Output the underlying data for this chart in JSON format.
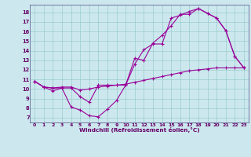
{
  "bg_color": "#cce8ee",
  "line_color": "#990099",
  "grid_color": "#99cccc",
  "spine_color": "#666699",
  "tick_color": "#660066",
  "xlabel": "Windchill (Refroidissement éolien,°C)",
  "xlim": [
    -0.5,
    23.5
  ],
  "ylim": [
    6.5,
    18.8
  ],
  "xticks": [
    0,
    1,
    2,
    3,
    4,
    5,
    6,
    7,
    8,
    9,
    10,
    11,
    12,
    13,
    14,
    15,
    16,
    17,
    18,
    19,
    20,
    21,
    22,
    23
  ],
  "yticks": [
    7,
    8,
    9,
    10,
    11,
    12,
    13,
    14,
    15,
    16,
    17,
    18
  ],
  "line1_x": [
    0,
    1,
    2,
    3,
    4,
    5,
    6,
    7,
    8,
    9,
    10,
    11,
    12,
    13,
    14,
    15,
    16,
    17,
    18,
    19,
    20,
    21,
    22,
    23
  ],
  "line1_y": [
    10.8,
    10.2,
    9.8,
    10.1,
    8.1,
    7.8,
    7.2,
    7.1,
    7.9,
    8.8,
    10.4,
    13.2,
    13.0,
    14.8,
    15.6,
    16.6,
    17.8,
    17.8,
    18.4,
    17.9,
    17.4,
    16.1,
    13.4,
    12.2
  ],
  "line2_x": [
    0,
    1,
    2,
    3,
    4,
    5,
    6,
    7,
    8,
    9,
    10,
    11,
    12,
    13,
    14,
    15,
    16,
    17,
    18,
    19,
    20,
    21,
    22,
    23
  ],
  "line2_y": [
    10.8,
    10.2,
    10.1,
    10.1,
    10.1,
    9.2,
    8.6,
    10.4,
    10.4,
    10.4,
    10.4,
    12.6,
    14.1,
    14.7,
    14.7,
    17.4,
    17.7,
    18.1,
    18.4,
    17.9,
    17.4,
    16.1,
    13.4,
    12.2
  ],
  "line3_x": [
    0,
    1,
    2,
    3,
    4,
    5,
    6,
    7,
    8,
    9,
    10,
    11,
    12,
    13,
    14,
    15,
    16,
    17,
    18,
    19,
    20,
    21,
    22,
    23
  ],
  "line3_y": [
    10.8,
    10.2,
    10.1,
    10.2,
    10.2,
    9.9,
    10.0,
    10.2,
    10.3,
    10.4,
    10.5,
    10.7,
    10.9,
    11.1,
    11.3,
    11.5,
    11.7,
    11.9,
    12.0,
    12.1,
    12.2,
    12.2,
    12.2,
    12.2
  ]
}
